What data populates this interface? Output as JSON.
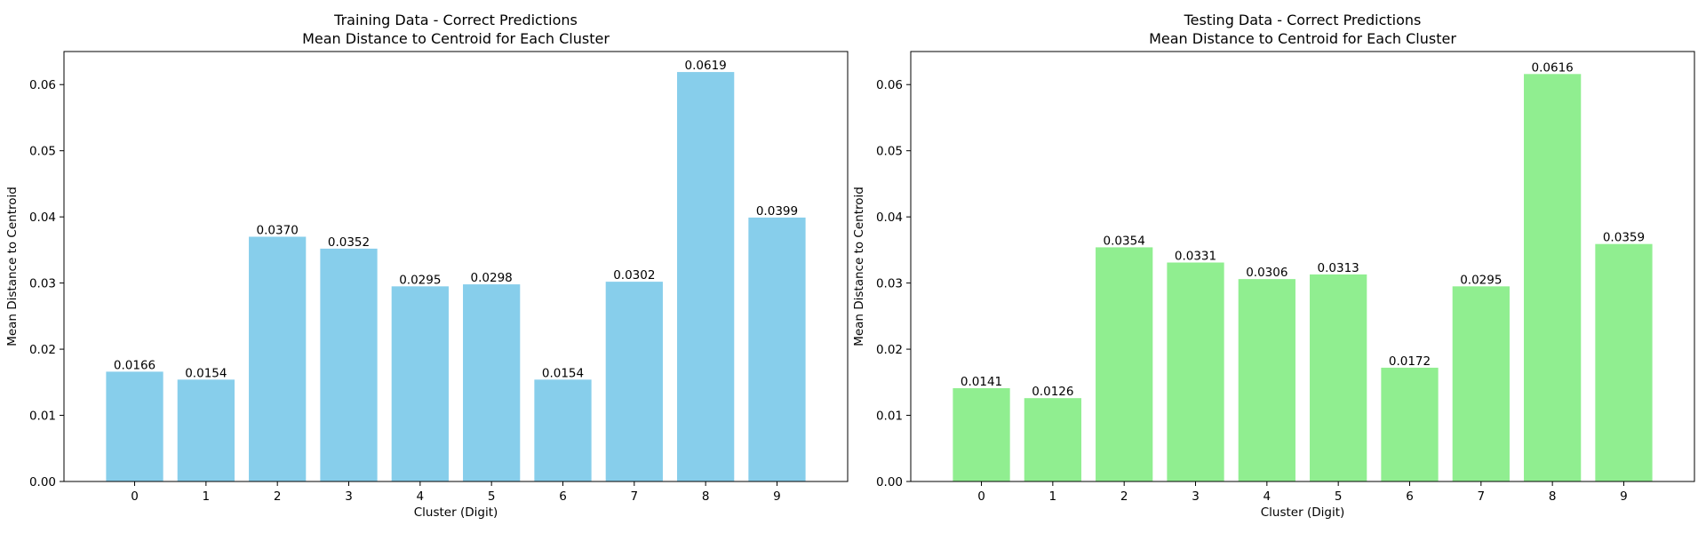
{
  "chart_data": [
    {
      "type": "bar",
      "title": "Training Data - Correct Predictions",
      "subtitle": "Mean Distance to Centroid for Each Cluster",
      "xlabel": "Cluster (Digit)",
      "ylabel": "Mean Distance to Centroid",
      "categories": [
        "0",
        "1",
        "2",
        "3",
        "4",
        "5",
        "6",
        "7",
        "8",
        "9"
      ],
      "values": [
        0.0166,
        0.0154,
        0.037,
        0.0352,
        0.0295,
        0.0298,
        0.0154,
        0.0302,
        0.0619,
        0.0399
      ],
      "value_labels": [
        "0.0166",
        "0.0154",
        "0.0370",
        "0.0352",
        "0.0295",
        "0.0298",
        "0.0154",
        "0.0302",
        "0.0619",
        "0.0399"
      ],
      "ylim": [
        0,
        0.065
      ],
      "yticks": [
        0,
        0.01,
        0.02,
        0.03,
        0.04,
        0.05,
        0.06
      ],
      "ytick_labels": [
        "0.00",
        "0.01",
        "0.02",
        "0.03",
        "0.04",
        "0.05",
        "0.06"
      ],
      "bar_color": "#87ceeb",
      "grid": false
    },
    {
      "type": "bar",
      "title": "Testing Data - Correct Predictions",
      "subtitle": "Mean Distance to Centroid for Each Cluster",
      "xlabel": "Cluster (Digit)",
      "ylabel": "Mean Distance to Centroid",
      "categories": [
        "0",
        "1",
        "2",
        "3",
        "4",
        "5",
        "6",
        "7",
        "8",
        "9"
      ],
      "values": [
        0.0141,
        0.0126,
        0.0354,
        0.0331,
        0.0306,
        0.0313,
        0.0172,
        0.0295,
        0.0616,
        0.0359
      ],
      "value_labels": [
        "0.0141",
        "0.0126",
        "0.0354",
        "0.0331",
        "0.0306",
        "0.0313",
        "0.0172",
        "0.0295",
        "0.0616",
        "0.0359"
      ],
      "ylim": [
        0,
        0.065
      ],
      "yticks": [
        0,
        0.01,
        0.02,
        0.03,
        0.04,
        0.05,
        0.06
      ],
      "ytick_labels": [
        "0.00",
        "0.01",
        "0.02",
        "0.03",
        "0.04",
        "0.05",
        "0.06"
      ],
      "bar_color": "#90ee90",
      "grid": false
    }
  ]
}
